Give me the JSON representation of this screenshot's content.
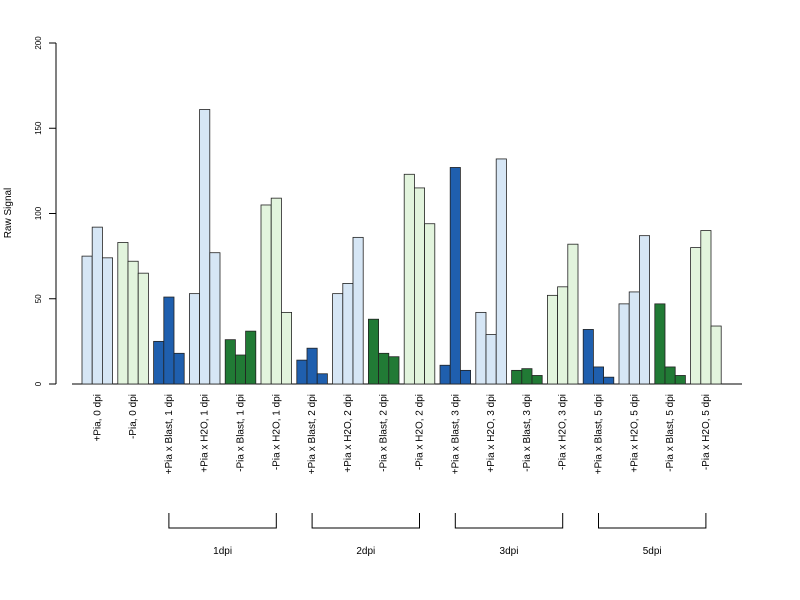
{
  "chart_data": {
    "type": "bar",
    "ylabel": "Raw Signal",
    "ylim": [
      0,
      200
    ],
    "yticks": [
      "0",
      "50",
      "100",
      "150",
      "200"
    ],
    "categories": [
      "+Pia, 0 dpi",
      "-Pia, 0 dpi",
      "+Pia x Blast, 1 dpi",
      "+Pia x H2O, 1 dpi",
      "-Pia x Blast, 1 dpi",
      "-Pia x H2O, 1 dpi",
      "+Pia x Blast, 2 dpi",
      "+Pia x H2O, 2 dpi",
      "-Pia x Blast, 2 dpi",
      "-Pia x H2O, 2 dpi",
      "+Pia x Blast, 3 dpi",
      "+Pia x H2O, 3 dpi",
      "-Pia x Blast, 3 dpi",
      "-Pia x H2O, 3 dpi",
      "+Pia x Blast, 5 dpi",
      "+Pia x H2O, 5 dpi",
      "-Pia x Blast, 5 dpi",
      "-Pia x H2O, 5 dpi"
    ],
    "values": [
      [
        75,
        92,
        74
      ],
      [
        83,
        72,
        65
      ],
      [
        25,
        51,
        18
      ],
      [
        53,
        161,
        77
      ],
      [
        26,
        17,
        31
      ],
      [
        105,
        109,
        42
      ],
      [
        14,
        21,
        6
      ],
      [
        53,
        59,
        86
      ],
      [
        38,
        18,
        16
      ],
      [
        123,
        115,
        94
      ],
      [
        11,
        127,
        8
      ],
      [
        42,
        29,
        132
      ],
      [
        8,
        9,
        5
      ],
      [
        52,
        57,
        82
      ],
      [
        32,
        10,
        4
      ],
      [
        47,
        54,
        87
      ],
      [
        47,
        10,
        5
      ],
      [
        80,
        90,
        34
      ]
    ],
    "category_colors": [
      "#d6e6f5",
      "#e2f4dd",
      "#1f5fae",
      "#d6e6f5",
      "#217a35",
      "#e2f4dd",
      "#1f5fae",
      "#d6e6f5",
      "#217a35",
      "#e2f4dd",
      "#1f5fae",
      "#d6e6f5",
      "#217a35",
      "#e2f4dd",
      "#1f5fae",
      "#d6e6f5",
      "#217a35",
      "#e2f4dd"
    ],
    "groups": [
      {
        "label": "1dpi",
        "from": 2,
        "to": 5
      },
      {
        "label": "2dpi",
        "from": 6,
        "to": 9
      },
      {
        "label": "3dpi",
        "from": 10,
        "to": 13
      },
      {
        "label": "5dpi",
        "from": 14,
        "to": 17
      }
    ]
  }
}
